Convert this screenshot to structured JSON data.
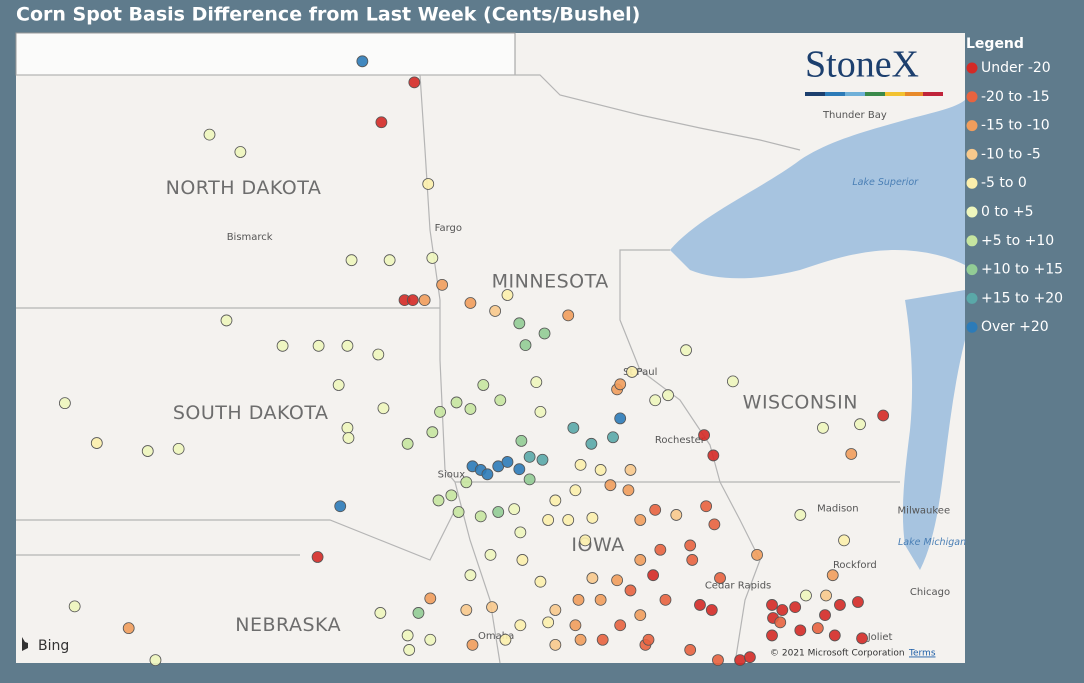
{
  "title": "Corn Spot Basis Difference from Last Week (Cents/Bushel)",
  "brand": "StoneX",
  "map_provider": "Bing",
  "copyright": "© 2021 Microsoft Corporation",
  "terms": "Terms",
  "bounds": {
    "lon": [
      -104.9,
      -86.46
    ],
    "lat": [
      40.89,
      49.57
    ]
  },
  "legend": {
    "title": "Legend",
    "items": [
      {
        "label": "Under -20",
        "color": "#d42a26"
      },
      {
        "label": "-20 to -15",
        "color": "#e8633f"
      },
      {
        "label": "-15 to -10",
        "color": "#f19d5c"
      },
      {
        "label": "-10 to -5",
        "color": "#f8c98c"
      },
      {
        "label": "-5 to 0",
        "color": "#fcefac"
      },
      {
        "label": "0 to +5",
        "color": "#eef6bd"
      },
      {
        "label": "+5 to +10",
        "color": "#c6e5a0"
      },
      {
        "label": "+10 to +15",
        "color": "#92cc95"
      },
      {
        "label": "+15 to +20",
        "color": "#5aa8a8"
      },
      {
        "label": "Over +20",
        "color": "#2c7bb8"
      }
    ]
  },
  "labels": [
    {
      "text": "NORTH DAKOTA",
      "kind": "state",
      "lon": -100.48,
      "lat": 47.43
    },
    {
      "text": "SOUTH DAKOTA",
      "kind": "state",
      "lon": -100.34,
      "lat": 44.33
    },
    {
      "text": "MINNESOTA",
      "kind": "state",
      "lon": -94.52,
      "lat": 46.14
    },
    {
      "text": "WISCONSIN",
      "kind": "state",
      "lon": -89.66,
      "lat": 44.47
    },
    {
      "text": "NEBRASKA",
      "kind": "state",
      "lon": -99.61,
      "lat": 41.41
    },
    {
      "text": "IOWA",
      "kind": "state",
      "lon": -93.59,
      "lat": 42.51
    },
    {
      "text": "Bismarck",
      "kind": "city",
      "lon": -100.36,
      "lat": 46.76
    },
    {
      "text": "Fargo",
      "kind": "city",
      "lon": -96.5,
      "lat": 46.88
    },
    {
      "text": "St Paul",
      "kind": "city",
      "lon": -92.77,
      "lat": 44.9
    },
    {
      "text": "Rochester",
      "kind": "city",
      "lon": -92.0,
      "lat": 43.96
    },
    {
      "text": "Sioux",
      "kind": "city",
      "lon": -96.44,
      "lat": 43.49
    },
    {
      "text": "Omaha",
      "kind": "city",
      "lon": -95.57,
      "lat": 41.26
    },
    {
      "text": "Madison",
      "kind": "city",
      "lon": -88.93,
      "lat": 43.02
    },
    {
      "text": "Milwaukee",
      "kind": "city",
      "lon": -87.26,
      "lat": 42.99
    },
    {
      "text": "Rockford",
      "kind": "city",
      "lon": -88.6,
      "lat": 42.24
    },
    {
      "text": "Chicago",
      "kind": "city",
      "lon": -87.14,
      "lat": 41.87
    },
    {
      "text": "Joliet",
      "kind": "city",
      "lon": -88.11,
      "lat": 41.25
    },
    {
      "text": "Cedar Rapids",
      "kind": "city",
      "lon": -90.87,
      "lat": 41.96
    },
    {
      "text": "Thunder Bay",
      "kind": "city",
      "lon": -88.6,
      "lat": 48.44
    },
    {
      "text": "Lake Superior",
      "kind": "lake",
      "lon": -88.01,
      "lat": 47.51
    },
    {
      "text": "Lake Michigan",
      "kind": "lake",
      "lon": -87.1,
      "lat": 42.55
    }
  ],
  "points": [
    [
      -98.17,
      49.18,
      9
    ],
    [
      -97.16,
      48.89,
      0
    ],
    [
      -97.8,
      48.34,
      0
    ],
    [
      -101.14,
      48.17,
      5
    ],
    [
      -100.54,
      47.93,
      5
    ],
    [
      -96.89,
      47.49,
      4
    ],
    [
      -96.81,
      46.47,
      5
    ],
    [
      -97.64,
      46.44,
      5
    ],
    [
      -98.38,
      46.44,
      5
    ],
    [
      -97.35,
      45.89,
      0
    ],
    [
      -97.19,
      45.89,
      0
    ],
    [
      -96.96,
      45.89,
      2
    ],
    [
      -96.62,
      46.1,
      2
    ],
    [
      -96.07,
      45.85,
      2
    ],
    [
      -95.59,
      45.74,
      3
    ],
    [
      -95.12,
      45.57,
      7
    ],
    [
      -94.63,
      45.43,
      7
    ],
    [
      -94.17,
      45.68,
      2
    ],
    [
      -95.0,
      45.27,
      7
    ],
    [
      -95.35,
      45.96,
      4
    ],
    [
      -100.81,
      45.61,
      5
    ],
    [
      -99.72,
      45.26,
      5
    ],
    [
      -99.02,
      45.26,
      5
    ],
    [
      -98.46,
      45.26,
      5
    ],
    [
      -97.86,
      45.14,
      5
    ],
    [
      -98.63,
      44.72,
      5
    ],
    [
      -103.95,
      44.47,
      5
    ],
    [
      -102.34,
      43.81,
      5
    ],
    [
      -101.74,
      43.84,
      5
    ],
    [
      -103.33,
      43.92,
      4
    ],
    [
      -98.6,
      43.05,
      9
    ],
    [
      -99.04,
      42.35,
      0
    ],
    [
      -102.71,
      41.37,
      2
    ],
    [
      -103.76,
      41.67,
      5
    ],
    [
      -97.76,
      44.4,
      5
    ],
    [
      -98.46,
      44.13,
      5
    ],
    [
      -98.44,
      43.99,
      5
    ],
    [
      -97.29,
      43.91,
      6
    ],
    [
      -96.81,
      44.07,
      6
    ],
    [
      -96.66,
      44.35,
      6
    ],
    [
      -96.34,
      44.48,
      6
    ],
    [
      -96.07,
      44.39,
      6
    ],
    [
      -95.82,
      44.72,
      6
    ],
    [
      -95.49,
      44.51,
      6
    ],
    [
      -94.79,
      44.76,
      5
    ],
    [
      -94.71,
      44.35,
      5
    ],
    [
      -95.08,
      43.95,
      7
    ],
    [
      -94.92,
      43.73,
      8
    ],
    [
      -94.67,
      43.69,
      8
    ],
    [
      -96.03,
      43.6,
      9
    ],
    [
      -95.87,
      43.55,
      9
    ],
    [
      -95.74,
      43.49,
      9
    ],
    [
      -95.53,
      43.6,
      9
    ],
    [
      -95.35,
      43.66,
      9
    ],
    [
      -95.12,
      43.56,
      9
    ],
    [
      -94.92,
      43.42,
      7
    ],
    [
      -95.53,
      42.97,
      7
    ],
    [
      -96.15,
      43.38,
      6
    ],
    [
      -96.44,
      43.2,
      6
    ],
    [
      -96.3,
      42.97,
      6
    ],
    [
      -96.69,
      43.13,
      6
    ],
    [
      -95.87,
      42.91,
      6
    ],
    [
      -95.22,
      43.01,
      5
    ],
    [
      -95.1,
      42.69,
      5
    ],
    [
      -94.07,
      44.13,
      8
    ],
    [
      -93.72,
      43.91,
      8
    ],
    [
      -93.3,
      44.0,
      8
    ],
    [
      -93.16,
      44.26,
      9
    ],
    [
      -93.22,
      44.66,
      2
    ],
    [
      -92.93,
      44.9,
      4
    ],
    [
      -91.88,
      45.2,
      5
    ],
    [
      -90.97,
      44.77,
      5
    ],
    [
      -91.53,
      44.03,
      0
    ],
    [
      -91.35,
      43.75,
      0
    ],
    [
      -88.05,
      44.3,
      0
    ],
    [
      -88.67,
      43.77,
      2
    ],
    [
      -88.5,
      44.18,
      5
    ],
    [
      -89.22,
      44.13,
      5
    ],
    [
      -89.66,
      42.93,
      5
    ],
    [
      -88.81,
      42.58,
      4
    ],
    [
      -93.93,
      43.62,
      4
    ],
    [
      -93.54,
      43.55,
      4
    ],
    [
      -92.96,
      43.55,
      3
    ],
    [
      -93.0,
      43.27,
      2
    ],
    [
      -93.35,
      43.34,
      2
    ],
    [
      -94.03,
      43.27,
      4
    ],
    [
      -94.42,
      43.13,
      4
    ],
    [
      -94.56,
      42.86,
      4
    ],
    [
      -94.17,
      42.86,
      4
    ],
    [
      -93.7,
      42.89,
      4
    ],
    [
      -93.84,
      42.58,
      4
    ],
    [
      -92.77,
      42.86,
      2
    ],
    [
      -92.48,
      43.0,
      1
    ],
    [
      -92.07,
      42.93,
      3
    ],
    [
      -91.49,
      43.05,
      1
    ],
    [
      -91.33,
      42.8,
      1
    ],
    [
      -91.8,
      42.51,
      1
    ],
    [
      -92.38,
      42.45,
      1
    ],
    [
      -91.76,
      42.31,
      1
    ],
    [
      -92.77,
      42.31,
      2
    ],
    [
      -93.22,
      42.03,
      2
    ],
    [
      -93.7,
      42.06,
      3
    ],
    [
      -93.54,
      41.76,
      2
    ],
    [
      -92.96,
      41.89,
      1
    ],
    [
      -92.52,
      42.1,
      0
    ],
    [
      -92.28,
      41.76,
      1
    ],
    [
      -92.77,
      41.55,
      2
    ],
    [
      -93.16,
      41.41,
      1
    ],
    [
      -93.97,
      41.76,
      2
    ],
    [
      -94.42,
      41.62,
      3
    ],
    [
      -94.71,
      42.01,
      4
    ],
    [
      -95.06,
      42.31,
      4
    ],
    [
      -95.68,
      42.38,
      5
    ],
    [
      -96.07,
      42.1,
      5
    ],
    [
      -96.15,
      41.62,
      3
    ],
    [
      -95.65,
      41.66,
      3
    ],
    [
      -96.85,
      41.78,
      2
    ],
    [
      -97.08,
      41.58,
      7
    ],
    [
      -97.82,
      41.58,
      5
    ],
    [
      -97.29,
      41.27,
      5
    ],
    [
      -96.85,
      41.21,
      5
    ],
    [
      -97.26,
      41.07,
      5
    ],
    [
      -102.19,
      40.93,
      5
    ],
    [
      -96.03,
      41.14,
      2
    ],
    [
      -94.42,
      41.14,
      3
    ],
    [
      -93.93,
      41.21,
      2
    ],
    [
      -93.5,
      41.21,
      1
    ],
    [
      -92.67,
      41.14,
      1
    ],
    [
      -91.61,
      41.69,
      0
    ],
    [
      -91.38,
      41.62,
      0
    ],
    [
      -91.22,
      42.06,
      1
    ],
    [
      -90.5,
      42.38,
      2
    ],
    [
      -90.21,
      41.69,
      0
    ],
    [
      -90.01,
      41.62,
      0
    ],
    [
      -89.76,
      41.66,
      0
    ],
    [
      -90.19,
      41.51,
      0
    ],
    [
      -90.21,
      41.27,
      0
    ],
    [
      -89.66,
      41.34,
      0
    ],
    [
      -90.05,
      41.45,
      1
    ],
    [
      -89.18,
      41.55,
      0
    ],
    [
      -88.89,
      41.69,
      0
    ],
    [
      -88.54,
      41.73,
      0
    ],
    [
      -88.46,
      41.23,
      0
    ],
    [
      -88.99,
      41.27,
      0
    ],
    [
      -89.32,
      41.37,
      1
    ],
    [
      -89.16,
      41.82,
      3
    ],
    [
      -89.03,
      42.1,
      2
    ],
    [
      -89.55,
      41.82,
      5
    ],
    [
      -90.83,
      40.93,
      0
    ],
    [
      -90.64,
      40.97,
      0
    ],
    [
      -91.26,
      40.93,
      1
    ],
    [
      -91.8,
      41.07,
      1
    ],
    [
      -92.61,
      41.21,
      1
    ],
    [
      -94.56,
      41.45,
      4
    ],
    [
      -94.03,
      41.41,
      2
    ],
    [
      -95.1,
      41.41,
      4
    ],
    [
      -95.39,
      41.21,
      4
    ],
    [
      -93.16,
      44.73,
      2
    ],
    [
      -92.48,
      44.51,
      5
    ],
    [
      -92.23,
      44.58,
      5
    ]
  ]
}
